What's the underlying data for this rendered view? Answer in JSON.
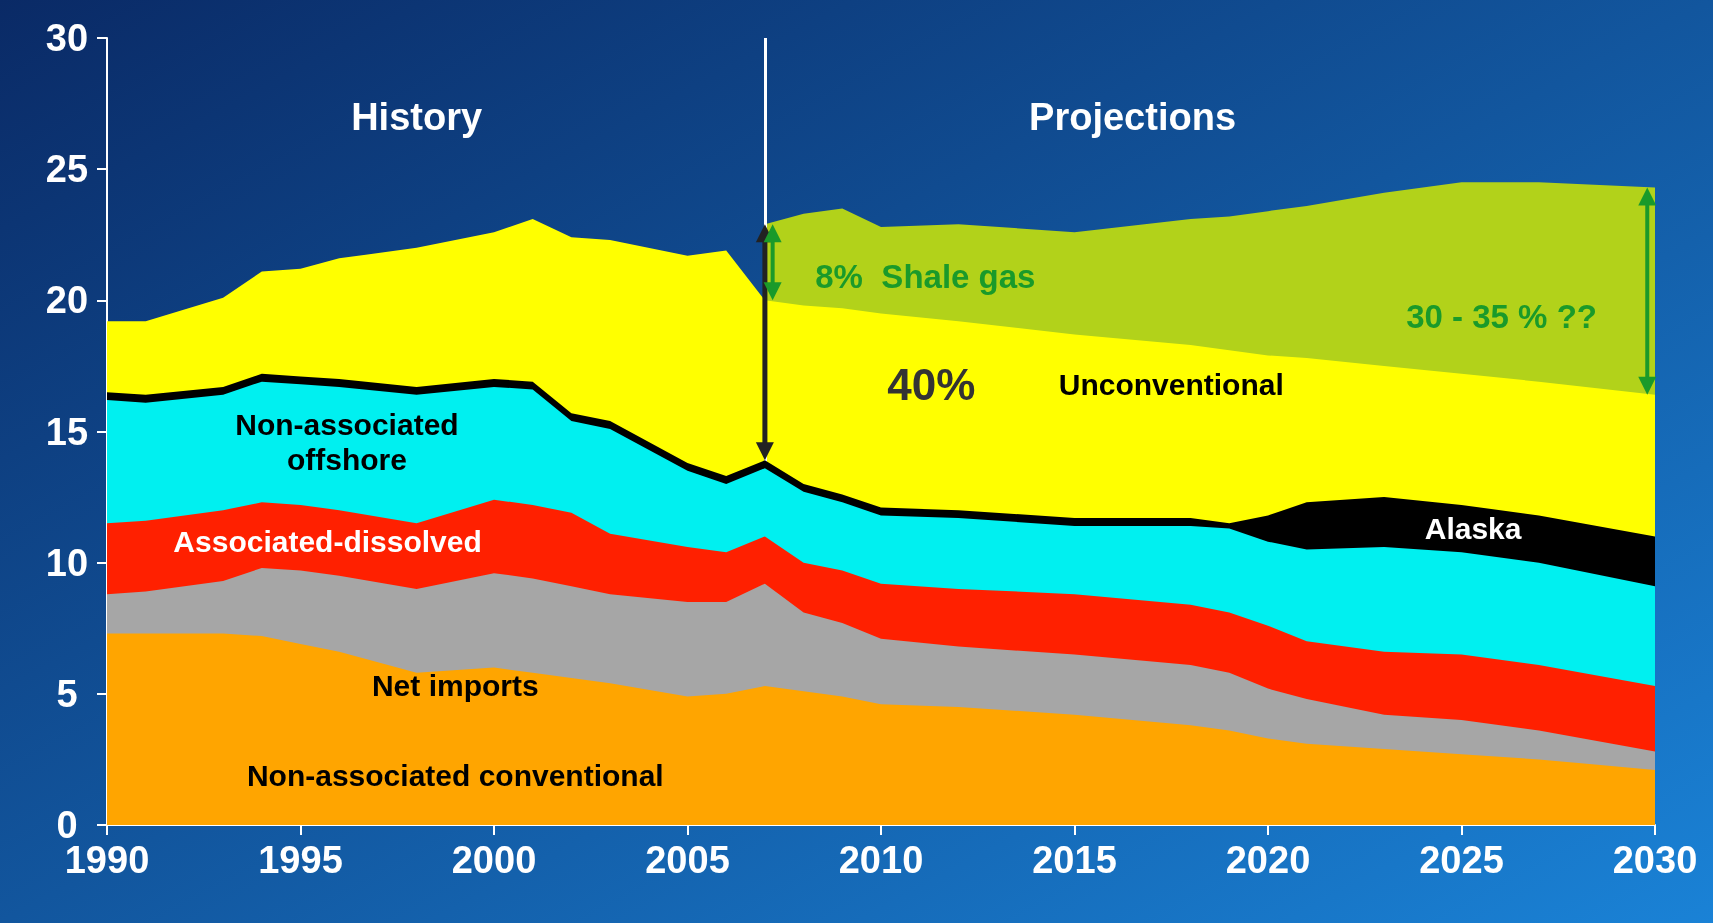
{
  "chart_data": {
    "type": "area",
    "stacked": true,
    "x": [
      1990,
      1991,
      1993,
      1994,
      1995,
      1996,
      1998,
      2000,
      2001,
      2002,
      2003,
      2005,
      2006,
      2007,
      2008,
      2009,
      2010,
      2012,
      2015,
      2018,
      2019,
      2020,
      2021,
      2023,
      2025,
      2027,
      2030
    ],
    "series": [
      {
        "name": "Non-associated conventional",
        "color": "#ffa500",
        "values": [
          7.3,
          7.3,
          7.3,
          7.2,
          6.9,
          6.6,
          5.8,
          6.0,
          5.8,
          5.6,
          5.4,
          4.9,
          5.0,
          5.3,
          5.1,
          4.9,
          4.6,
          4.5,
          4.2,
          3.8,
          3.6,
          3.3,
          3.1,
          2.9,
          2.7,
          2.5,
          2.1
        ]
      },
      {
        "name": "Net imports",
        "color": "#a6a6a6",
        "values": [
          1.5,
          1.6,
          2.0,
          2.6,
          2.8,
          2.9,
          3.2,
          3.6,
          3.6,
          3.5,
          3.4,
          3.6,
          3.5,
          3.9,
          3.0,
          2.8,
          2.5,
          2.3,
          2.3,
          2.3,
          2.2,
          1.9,
          1.7,
          1.3,
          1.3,
          1.1,
          0.7
        ]
      },
      {
        "name": "Associated-dissolved",
        "color": "#ff2000",
        "values": [
          2.7,
          2.7,
          2.7,
          2.5,
          2.5,
          2.5,
          2.5,
          2.8,
          2.8,
          2.8,
          2.3,
          2.1,
          1.9,
          1.8,
          1.9,
          2.0,
          2.1,
          2.2,
          2.3,
          2.3,
          2.3,
          2.4,
          2.2,
          2.4,
          2.5,
          2.5,
          2.5
        ]
      },
      {
        "name": "Non-associated offshore",
        "color": "#00f0f0",
        "values": [
          4.7,
          4.5,
          4.4,
          4.6,
          4.6,
          4.7,
          4.9,
          4.3,
          4.4,
          3.5,
          4.0,
          2.9,
          2.6,
          2.6,
          2.7,
          2.6,
          2.6,
          2.7,
          2.6,
          3.0,
          3.2,
          3.2,
          3.5,
          4.0,
          3.9,
          3.9,
          3.8
        ]
      },
      {
        "name": "Alaska",
        "color": "#000000",
        "values": [
          0.3,
          0.3,
          0.3,
          0.3,
          0.3,
          0.3,
          0.3,
          0.3,
          0.3,
          0.3,
          0.3,
          0.3,
          0.3,
          0.3,
          0.3,
          0.3,
          0.3,
          0.3,
          0.3,
          0.3,
          0.2,
          1.0,
          1.8,
          1.9,
          1.8,
          1.8,
          1.9
        ]
      },
      {
        "name": "Unconventional",
        "color": "#ffff00",
        "values": [
          2.7,
          2.8,
          3.4,
          3.9,
          4.1,
          4.6,
          5.3,
          5.6,
          6.2,
          6.7,
          6.9,
          7.9,
          8.6,
          6.1,
          6.8,
          7.1,
          7.4,
          7.2,
          7.0,
          6.6,
          6.6,
          6.1,
          5.5,
          5.0,
          5.0,
          5.1,
          5.4
        ]
      },
      {
        "name": "Shale gas",
        "color": "#b2d21a",
        "values": [
          null,
          null,
          null,
          null,
          null,
          null,
          null,
          null,
          null,
          null,
          null,
          null,
          null,
          2.9,
          3.5,
          3.8,
          3.3,
          3.7,
          3.9,
          4.8,
          5.1,
          5.5,
          5.8,
          6.6,
          7.3,
          7.6,
          7.9
        ]
      }
    ],
    "xlim": [
      1990,
      2030
    ],
    "xticks": [
      1990,
      1995,
      2000,
      2005,
      2010,
      2015,
      2020,
      2025,
      2030
    ],
    "ylim": [
      0,
      30
    ],
    "yticks": [
      0,
      5,
      10,
      15,
      20,
      25,
      30
    ],
    "ref_lines": [
      {
        "axis": "x",
        "value": 2007,
        "color": "#ffffff"
      }
    ],
    "annotations": [
      "History",
      "Projections",
      "40%",
      "8%",
      "30 - 35 % ??"
    ]
  }
}
